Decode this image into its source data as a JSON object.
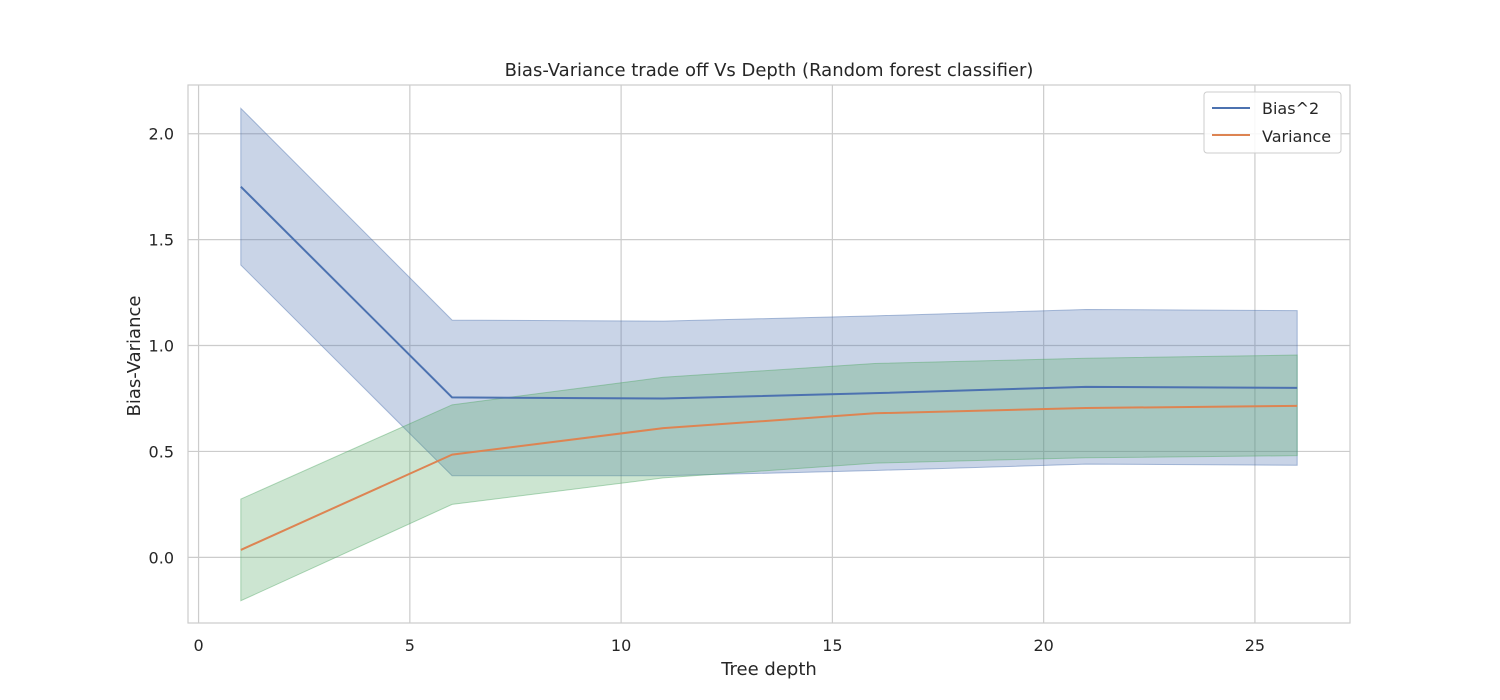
{
  "chart_data": {
    "type": "line",
    "title": "Bias-Variance trade off Vs Depth (Random forest classifier)",
    "xlabel": "Tree depth",
    "ylabel": "Bias-Variance",
    "xlim": [
      -0.25,
      27.25
    ],
    "ylim": [
      -0.31,
      2.23
    ],
    "xticks": [
      0,
      5,
      10,
      15,
      20,
      25
    ],
    "xtick_labels": [
      "0",
      "5",
      "10",
      "15",
      "20",
      "25"
    ],
    "yticks": [
      0.0,
      0.5,
      1.0,
      1.5,
      2.0
    ],
    "ytick_labels": [
      "0.0",
      "0.5",
      "1.0",
      "1.5",
      "2.0"
    ],
    "grid": true,
    "legend_position": "top-right",
    "legend": [
      "Bias^2",
      "Variance"
    ],
    "x": [
      1,
      6,
      11,
      16,
      21,
      26
    ],
    "series": [
      {
        "name": "Bias^2",
        "values": [
          1.75,
          0.755,
          0.75,
          0.775,
          0.805,
          0.8
        ],
        "lower": [
          1.38,
          0.385,
          0.385,
          0.41,
          0.44,
          0.435
        ],
        "upper": [
          2.12,
          1.12,
          1.115,
          1.14,
          1.17,
          1.165
        ],
        "line_color": "#4c72b0",
        "band_color": "#4c72b0"
      },
      {
        "name": "Variance",
        "values": [
          0.035,
          0.485,
          0.61,
          0.68,
          0.705,
          0.715
        ],
        "lower": [
          -0.205,
          0.25,
          0.375,
          0.445,
          0.47,
          0.48
        ],
        "upper": [
          0.275,
          0.72,
          0.85,
          0.915,
          0.94,
          0.955
        ],
        "line_color": "#dd8452",
        "band_color": "#55a868"
      }
    ],
    "legend_line_colors": [
      "#4c72b0",
      "#dd8452"
    ]
  }
}
